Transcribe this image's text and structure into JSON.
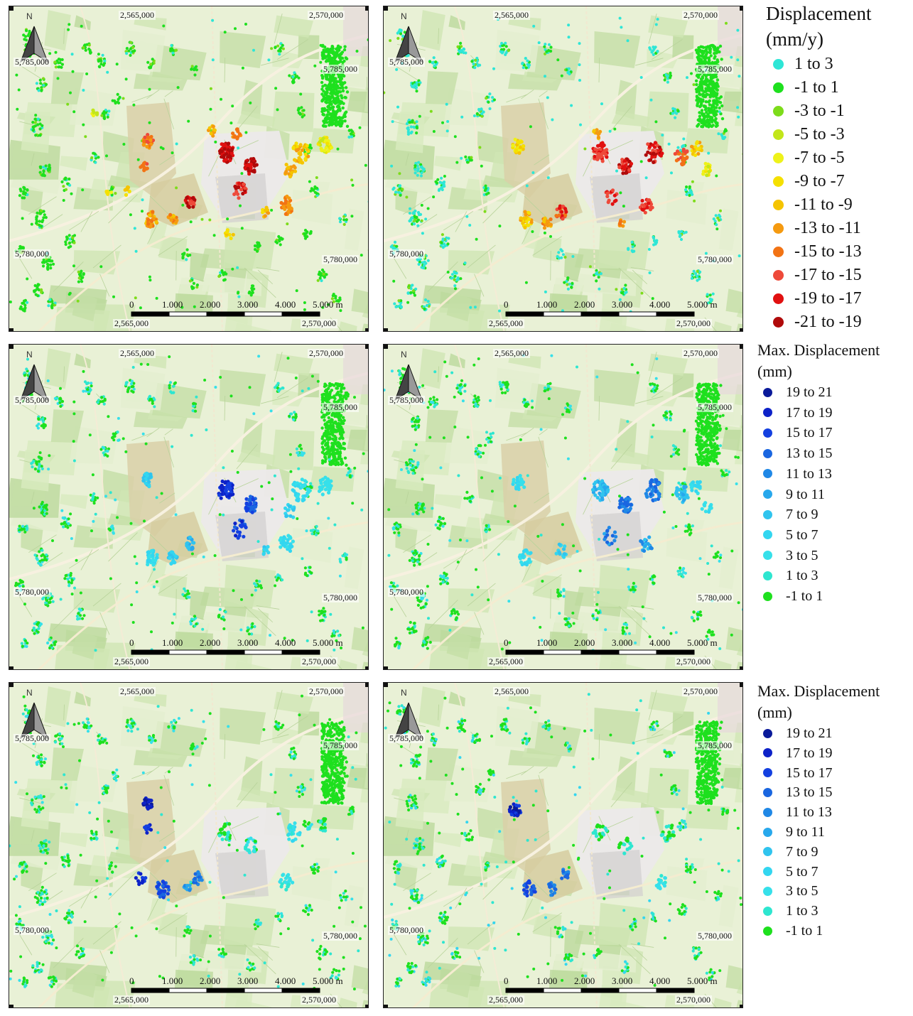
{
  "panels": [
    {
      "id": "p1",
      "scheme": "rate"
    },
    {
      "id": "p2",
      "scheme": "rate2"
    },
    {
      "id": "p3",
      "scheme": "max1"
    },
    {
      "id": "p4",
      "scheme": "max2"
    },
    {
      "id": "p5",
      "scheme": "max3"
    },
    {
      "id": "p6",
      "scheme": "max4"
    }
  ],
  "map_labels": {
    "east_left": "2,565,000",
    "east_right": "2,570,000",
    "north_top": "5,785,000",
    "north_bottom": "5,780,000",
    "north_arrow": "N"
  },
  "scalebar": {
    "ticks": [
      "0",
      "1.000",
      "2.000",
      "3.000",
      "4.000",
      "5.000 m"
    ]
  },
  "legends": [
    {
      "title_lines": [
        "Displacement",
        "(mm/y)"
      ],
      "items": [
        {
          "label": "1 to 3",
          "color": "#2ee6d6"
        },
        {
          "label": "-1 to 1",
          "color": "#1ee01e"
        },
        {
          "label": "-3 to -1",
          "color": "#7ddc1a"
        },
        {
          "label": "-5 to -3",
          "color": "#c2e61a"
        },
        {
          "label": "-7 to -5",
          "color": "#eef21a"
        },
        {
          "label": "-9 to -7",
          "color": "#f5e000"
        },
        {
          "label": "-11 to -9",
          "color": "#f5c400"
        },
        {
          "label": "-13 to -11",
          "color": "#f59a10"
        },
        {
          "label": "-15 to -13",
          "color": "#f27314"
        },
        {
          "label": "-17 to -15",
          "color": "#ee4a3a"
        },
        {
          "label": "-19 to -17",
          "color": "#e11010"
        },
        {
          "label": "-21 to -19",
          "color": "#b00a0a"
        }
      ]
    },
    {
      "title_lines": [
        "Max. Displacement",
        "(mm)"
      ],
      "items": [
        {
          "label": "19 to 21",
          "color": "#0a1a9a"
        },
        {
          "label": "17 to 19",
          "color": "#0d22c8"
        },
        {
          "label": "15 to 17",
          "color": "#1440e0"
        },
        {
          "label": "13 to 15",
          "color": "#1a66e0"
        },
        {
          "label": "11 to 13",
          "color": "#2088e6"
        },
        {
          "label": "9 to 11",
          "color": "#28a8ec"
        },
        {
          "label": "7 to 9",
          "color": "#30c4ee"
        },
        {
          "label": "5 to 7",
          "color": "#33d6f0"
        },
        {
          "label": "3 to 5",
          "color": "#36e0ea"
        },
        {
          "label": "1 to 3",
          "color": "#2ee6d0"
        },
        {
          "label": "-1 to 1",
          "color": "#1ee01e"
        }
      ]
    },
    {
      "title_lines": [
        "Max. Displacement",
        "(mm)"
      ],
      "items": [
        {
          "label": "19 to 21",
          "color": "#0a1a9a"
        },
        {
          "label": "17 to 19",
          "color": "#0d22c8"
        },
        {
          "label": "15 to 17",
          "color": "#1440e0"
        },
        {
          "label": "13 to 15",
          "color": "#1a66e0"
        },
        {
          "label": "11 to 13",
          "color": "#2088e6"
        },
        {
          "label": "9 to 11",
          "color": "#28a8ec"
        },
        {
          "label": "7 to 9",
          "color": "#30c4ee"
        },
        {
          "label": "5 to 7",
          "color": "#33d6f0"
        },
        {
          "label": "3 to 5",
          "color": "#36e0ea"
        },
        {
          "label": "1 to 3",
          "color": "#2ee6d0"
        },
        {
          "label": "-1 to 1",
          "color": "#1ee01e"
        }
      ]
    }
  ]
}
